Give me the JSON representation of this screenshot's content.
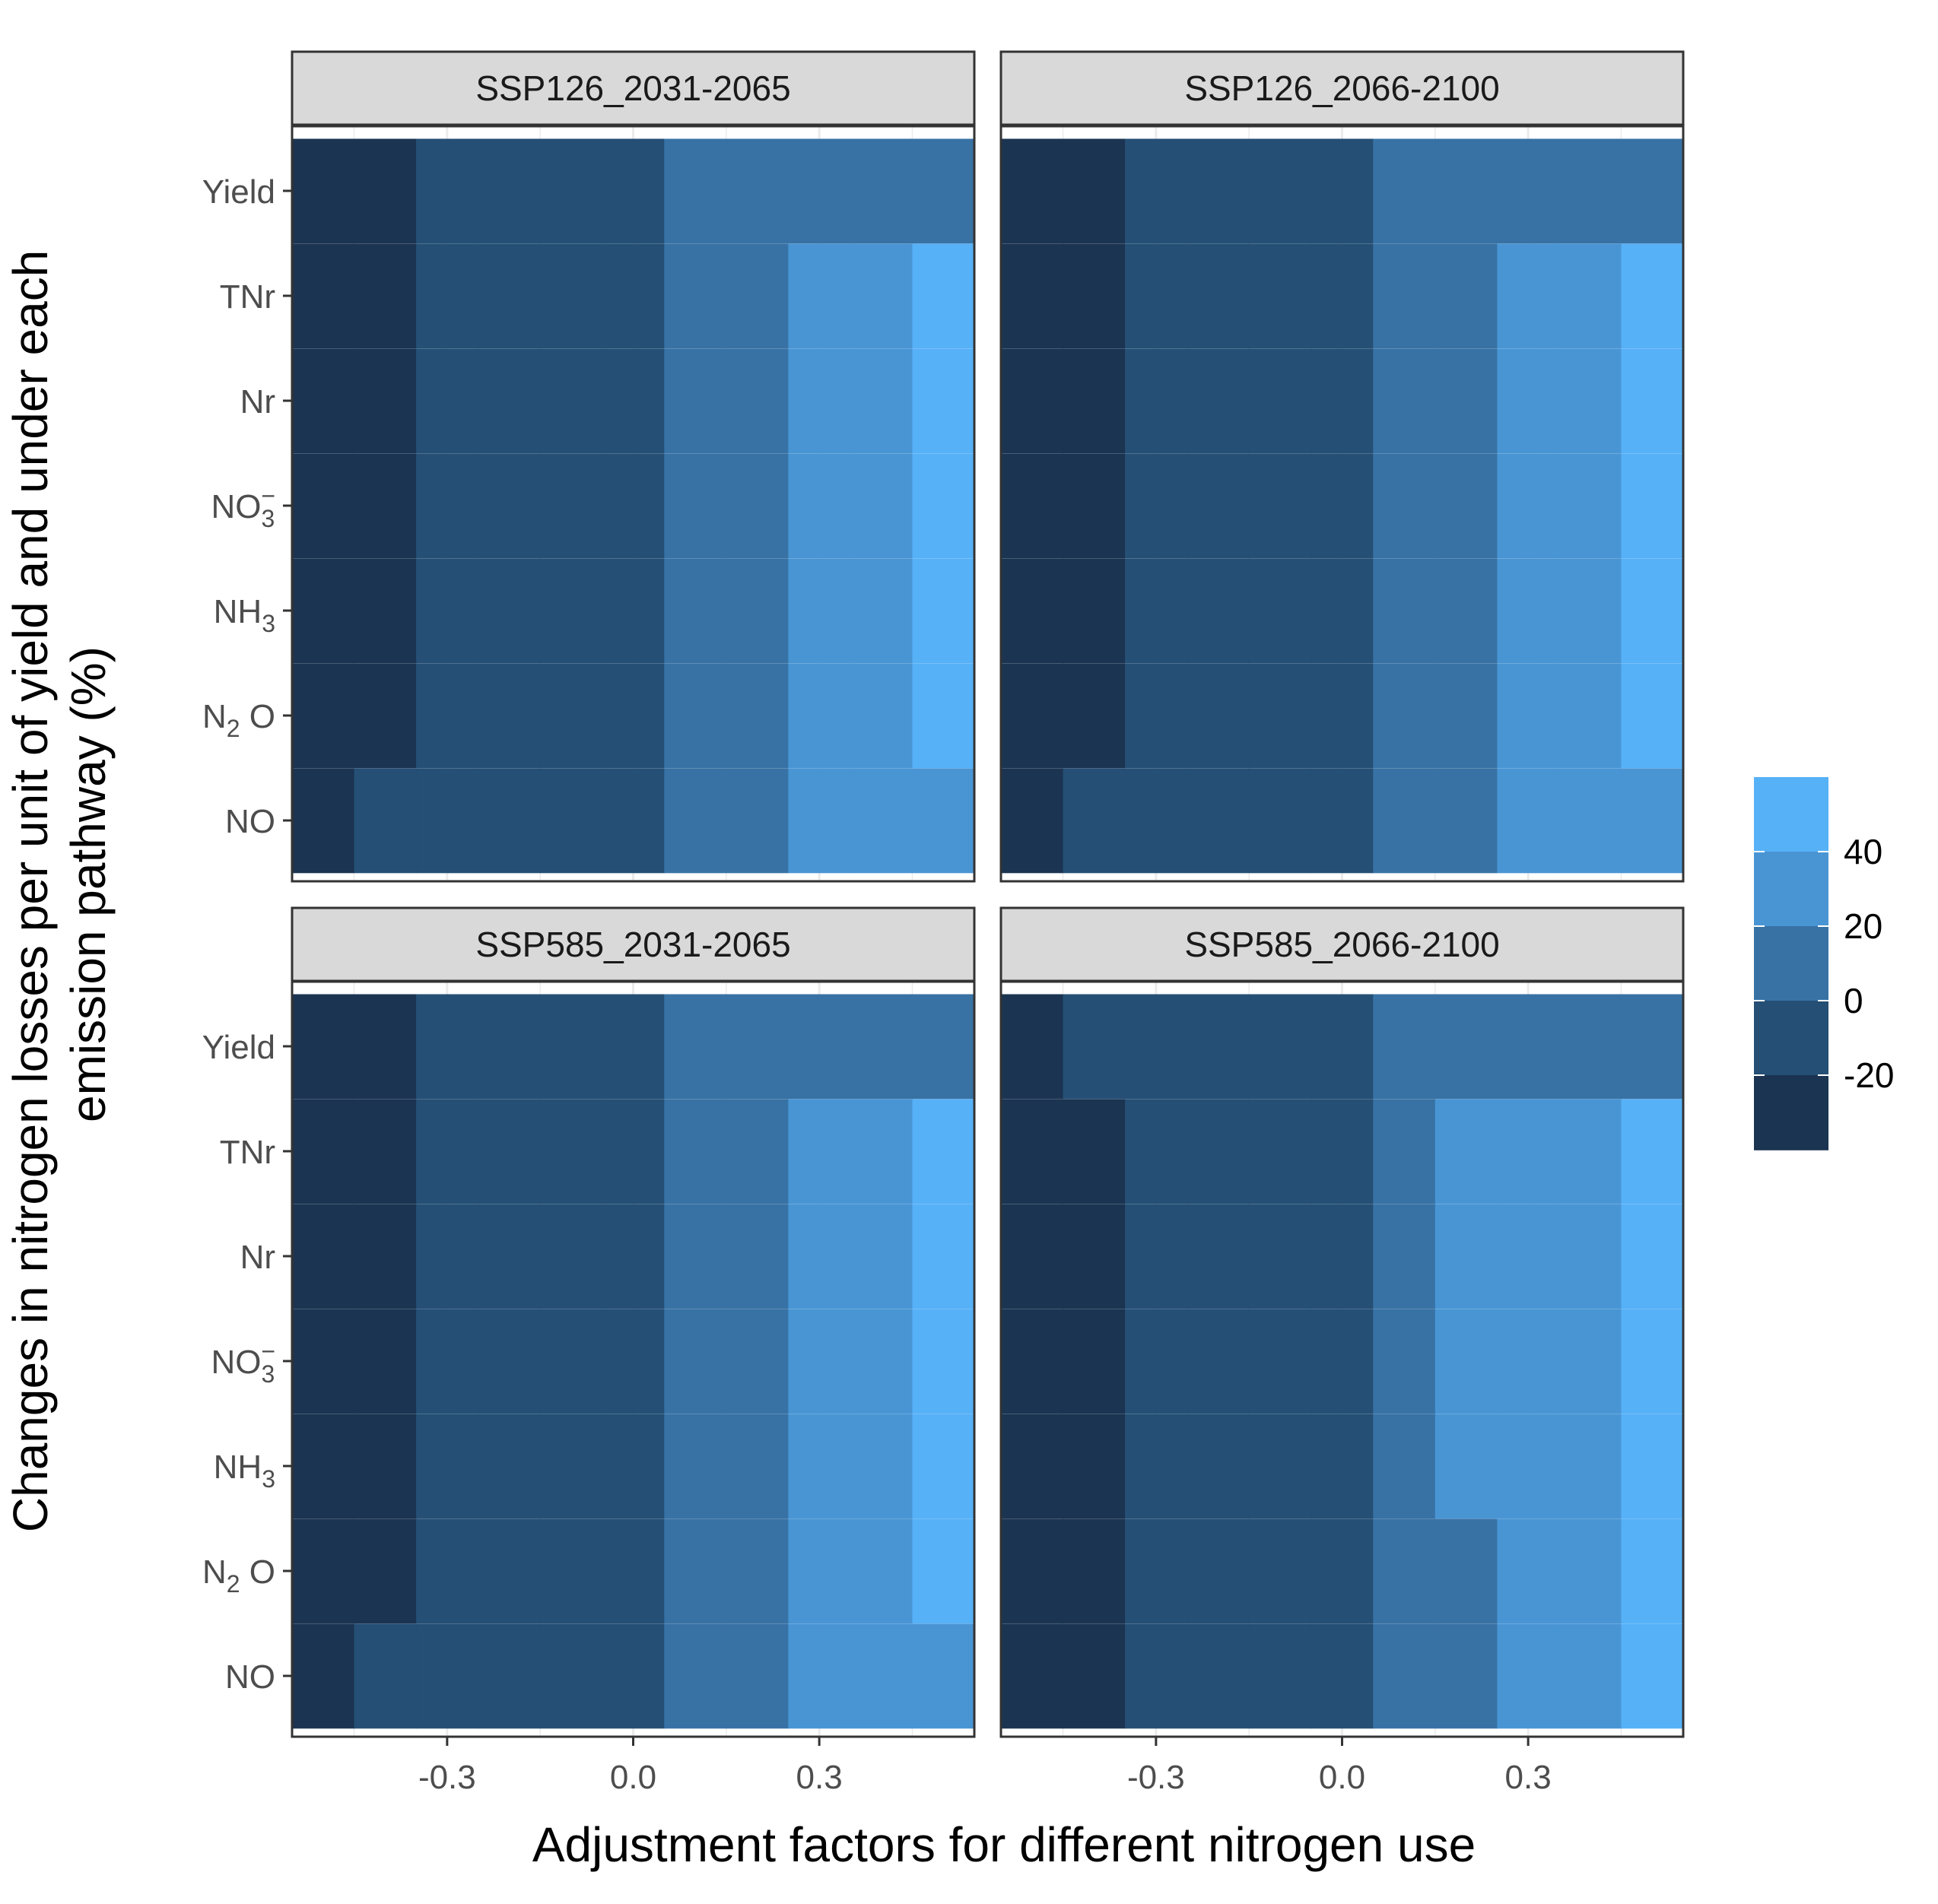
{
  "chart_data": {
    "type": "heatmap",
    "title": "",
    "xlabel": "Adjustment factors for different nitrogen use",
    "ylabel_lines": [
      "Changes in nitrogen losses per unit of yield and under each",
      "emission pathway (%)"
    ],
    "x_ticks": [
      -0.3,
      0.0,
      0.3
    ],
    "x_tick_labels": [
      "-0.3",
      "0.0",
      "0.3"
    ],
    "x_range": [
      -0.55,
      0.55
    ],
    "x_bins": [
      -0.5,
      -0.4,
      -0.3,
      -0.2,
      -0.1,
      0.0,
      0.1,
      0.2,
      0.3,
      0.4,
      0.5
    ],
    "rows": [
      {
        "key": "Yield",
        "label": "Yield",
        "sub": ""
      },
      {
        "key": "TNr",
        "label": "TNr",
        "sub": ""
      },
      {
        "key": "Nr",
        "label": "Nr",
        "sub": ""
      },
      {
        "key": "NO3",
        "label": "NO",
        "sub": "3",
        "sup": "−"
      },
      {
        "key": "NH3",
        "label": "NH",
        "sub": "3"
      },
      {
        "key": "N2O",
        "label": "N",
        "sub": "2",
        "tail": " O"
      },
      {
        "key": "NO",
        "label": "NO",
        "sub": ""
      }
    ],
    "legend": {
      "title": "",
      "breaks": [
        "40",
        "20",
        "0",
        "-20"
      ],
      "levels": [
        {
          "range": "40 to 60",
          "color": "#56b1f7"
        },
        {
          "range": "20 to 40",
          "color": "#4995d4"
        },
        {
          "range": "0 to 20",
          "color": "#3872a5"
        },
        {
          "range": "-20 to 0",
          "color": "#254f75"
        },
        {
          "range": "-40 to -20",
          "color": "#1b3451"
        }
      ]
    },
    "facets": [
      {
        "title": "SSP126_2031-2065",
        "level_index_by_row": {
          "Yield": [
            4,
            4,
            3,
            3,
            3,
            3,
            2,
            2,
            2,
            2,
            2
          ],
          "TNr": [
            4,
            4,
            3,
            3,
            3,
            3,
            2,
            2,
            1,
            1,
            0
          ],
          "Nr": [
            4,
            4,
            3,
            3,
            3,
            3,
            2,
            2,
            1,
            1,
            0
          ],
          "NO3": [
            4,
            4,
            3,
            3,
            3,
            3,
            2,
            2,
            1,
            1,
            0
          ],
          "NH3": [
            4,
            4,
            3,
            3,
            3,
            3,
            2,
            2,
            1,
            1,
            0
          ],
          "N2O": [
            4,
            4,
            3,
            3,
            3,
            3,
            2,
            2,
            1,
            1,
            0
          ],
          "NO": [
            4,
            3,
            3,
            3,
            3,
            3,
            2,
            2,
            1,
            1,
            1
          ]
        }
      },
      {
        "title": "SSP126_2066-2100",
        "level_index_by_row": {
          "Yield": [
            4,
            4,
            3,
            3,
            3,
            3,
            2,
            2,
            2,
            2,
            2
          ],
          "TNr": [
            4,
            4,
            3,
            3,
            3,
            3,
            2,
            2,
            1,
            1,
            0
          ],
          "Nr": [
            4,
            4,
            3,
            3,
            3,
            3,
            2,
            2,
            1,
            1,
            0
          ],
          "NO3": [
            4,
            4,
            3,
            3,
            3,
            3,
            2,
            2,
            1,
            1,
            0
          ],
          "NH3": [
            4,
            4,
            3,
            3,
            3,
            3,
            2,
            2,
            1,
            1,
            0
          ],
          "N2O": [
            4,
            4,
            3,
            3,
            3,
            3,
            2,
            2,
            1,
            1,
            0
          ],
          "NO": [
            4,
            3,
            3,
            3,
            3,
            3,
            2,
            2,
            1,
            1,
            1
          ]
        }
      },
      {
        "title": "SSP585_2031-2065",
        "level_index_by_row": {
          "Yield": [
            4,
            4,
            3,
            3,
            3,
            3,
            2,
            2,
            2,
            2,
            2
          ],
          "TNr": [
            4,
            4,
            3,
            3,
            3,
            3,
            2,
            2,
            1,
            1,
            0
          ],
          "Nr": [
            4,
            4,
            3,
            3,
            3,
            3,
            2,
            2,
            1,
            1,
            0
          ],
          "NO3": [
            4,
            4,
            3,
            3,
            3,
            3,
            2,
            2,
            1,
            1,
            0
          ],
          "NH3": [
            4,
            4,
            3,
            3,
            3,
            3,
            2,
            2,
            1,
            1,
            0
          ],
          "N2O": [
            4,
            4,
            3,
            3,
            3,
            3,
            2,
            2,
            1,
            1,
            0
          ],
          "NO": [
            4,
            3,
            3,
            3,
            3,
            3,
            2,
            2,
            1,
            1,
            1
          ]
        }
      },
      {
        "title": "SSP585_2066-2100",
        "level_index_by_row": {
          "Yield": [
            4,
            3,
            3,
            3,
            3,
            3,
            2,
            2,
            2,
            2,
            2
          ],
          "TNr": [
            4,
            4,
            3,
            3,
            3,
            3,
            2,
            1,
            1,
            1,
            0
          ],
          "Nr": [
            4,
            4,
            3,
            3,
            3,
            3,
            2,
            1,
            1,
            1,
            0
          ],
          "NO3": [
            4,
            4,
            3,
            3,
            3,
            3,
            2,
            1,
            1,
            1,
            0
          ],
          "NH3": [
            4,
            4,
            3,
            3,
            3,
            3,
            2,
            1,
            1,
            1,
            0
          ],
          "N2O": [
            4,
            4,
            3,
            3,
            3,
            3,
            2,
            2,
            1,
            1,
            0
          ],
          "NO": [
            4,
            4,
            3,
            3,
            3,
            3,
            2,
            2,
            1,
            1,
            0
          ]
        }
      }
    ]
  }
}
